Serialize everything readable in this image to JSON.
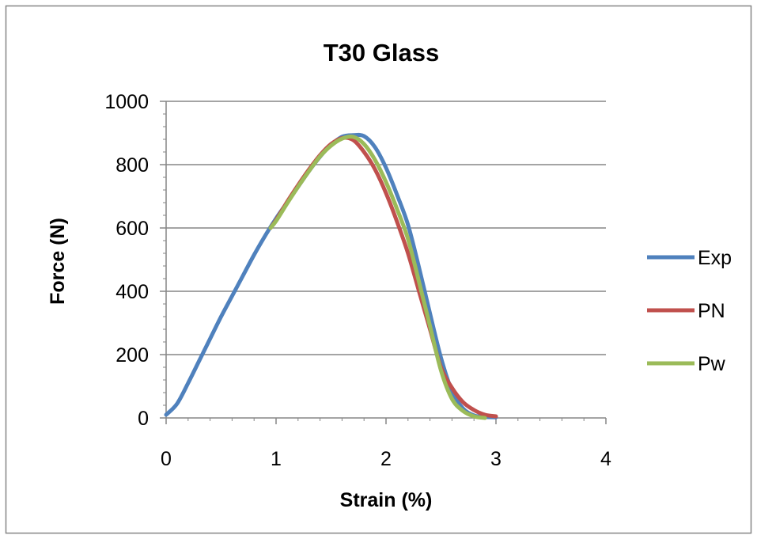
{
  "chart_data": {
    "type": "line",
    "title": "T30 Glass",
    "xlabel": "Strain (%)",
    "ylabel": "Force (N)",
    "xlim": [
      0,
      4
    ],
    "ylim": [
      0,
      1000
    ],
    "x_ticks": [
      "0",
      "1",
      "2",
      "3",
      "4"
    ],
    "y_ticks": [
      "0",
      "200",
      "400",
      "600",
      "800",
      "1000"
    ],
    "grid": "horizontal",
    "legend_position": "right",
    "series": [
      {
        "name": "Exp",
        "color": "#4F81BD",
        "points": [
          [
            0,
            10
          ],
          [
            0.1,
            45
          ],
          [
            0.2,
            110
          ],
          [
            0.3,
            180
          ],
          [
            0.4,
            250
          ],
          [
            0.5,
            320
          ],
          [
            0.6,
            385
          ],
          [
            0.7,
            450
          ],
          [
            0.8,
            515
          ],
          [
            0.9,
            575
          ],
          [
            1.0,
            630
          ],
          [
            1.1,
            680
          ],
          [
            1.2,
            730
          ],
          [
            1.3,
            780
          ],
          [
            1.4,
            825
          ],
          [
            1.5,
            862
          ],
          [
            1.6,
            888
          ],
          [
            1.7,
            893
          ],
          [
            1.8,
            890
          ],
          [
            1.9,
            855
          ],
          [
            2.0,
            790
          ],
          [
            2.1,
            705
          ],
          [
            2.2,
            610
          ],
          [
            2.3,
            475
          ],
          [
            2.4,
            330
          ],
          [
            2.5,
            190
          ],
          [
            2.6,
            85
          ],
          [
            2.7,
            30
          ],
          [
            2.8,
            8
          ],
          [
            2.9,
            3
          ],
          [
            3.0,
            2
          ]
        ]
      },
      {
        "name": "PN",
        "color": "#C0504D",
        "points": [
          [
            0.95,
            600
          ],
          [
            1.0,
            625
          ],
          [
            1.1,
            682
          ],
          [
            1.2,
            735
          ],
          [
            1.3,
            785
          ],
          [
            1.4,
            830
          ],
          [
            1.5,
            865
          ],
          [
            1.6,
            884
          ],
          [
            1.7,
            878
          ],
          [
            1.8,
            840
          ],
          [
            1.9,
            785
          ],
          [
            2.0,
            710
          ],
          [
            2.1,
            620
          ],
          [
            2.2,
            520
          ],
          [
            2.3,
            400
          ],
          [
            2.4,
            280
          ],
          [
            2.5,
            160
          ],
          [
            2.6,
            95
          ],
          [
            2.7,
            50
          ],
          [
            2.8,
            25
          ],
          [
            2.9,
            10
          ],
          [
            3.0,
            5
          ]
        ]
      },
      {
        "name": "Pw",
        "color": "#9BBB59",
        "points": [
          [
            0.95,
            600
          ],
          [
            1.0,
            622
          ],
          [
            1.1,
            677
          ],
          [
            1.2,
            730
          ],
          [
            1.3,
            780
          ],
          [
            1.4,
            826
          ],
          [
            1.5,
            860
          ],
          [
            1.6,
            882
          ],
          [
            1.7,
            888
          ],
          [
            1.8,
            865
          ],
          [
            1.9,
            815
          ],
          [
            2.0,
            745
          ],
          [
            2.1,
            660
          ],
          [
            2.2,
            565
          ],
          [
            2.3,
            430
          ],
          [
            2.4,
            290
          ],
          [
            2.5,
            150
          ],
          [
            2.6,
            60
          ],
          [
            2.7,
            22
          ],
          [
            2.8,
            5
          ],
          [
            2.9,
            0
          ]
        ]
      }
    ]
  }
}
